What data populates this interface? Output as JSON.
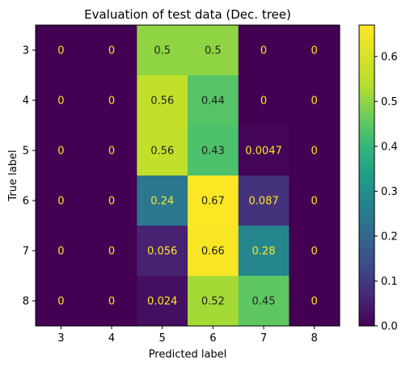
{
  "chart_data": {
    "type": "heatmap",
    "title": "Evaluation of test data (Dec. tree)",
    "xlabel": "Predicted label",
    "ylabel": "True label",
    "x_categories": [
      "3",
      "4",
      "5",
      "6",
      "7",
      "8"
    ],
    "y_categories": [
      "3",
      "4",
      "5",
      "6",
      "7",
      "8"
    ],
    "values": [
      [
        0,
        0,
        0.5,
        0.5,
        0,
        0
      ],
      [
        0,
        0,
        0.56,
        0.44,
        0,
        0
      ],
      [
        0,
        0,
        0.56,
        0.43,
        0.0047,
        0
      ],
      [
        0,
        0,
        0.24,
        0.67,
        0.087,
        0
      ],
      [
        0,
        0,
        0.056,
        0.66,
        0.28,
        0
      ],
      [
        0,
        0,
        0.024,
        0.52,
        0.45,
        0
      ]
    ],
    "cell_labels": [
      [
        "0",
        "0",
        "0.5",
        "0.5",
        "0",
        "0"
      ],
      [
        "0",
        "0",
        "0.56",
        "0.44",
        "0",
        "0"
      ],
      [
        "0",
        "0",
        "0.56",
        "0.43",
        "0.0047",
        "0"
      ],
      [
        "0",
        "0",
        "0.24",
        "0.67",
        "0.087",
        "0"
      ],
      [
        "0",
        "0",
        "0.056",
        "0.66",
        "0.28",
        "0"
      ],
      [
        "0",
        "0",
        "0.024",
        "0.52",
        "0.45",
        "0"
      ]
    ],
    "colormap": "viridis",
    "vmin": 0,
    "vmax": 0.67,
    "colorbar_ticks": [
      "0.0",
      "0.1",
      "0.2",
      "0.3",
      "0.4",
      "0.5",
      "0.6"
    ],
    "colorbar_tick_values": [
      0,
      0.1,
      0.2,
      0.3,
      0.4,
      0.5,
      0.6
    ],
    "text_color_dark_cells": "#fde725",
    "text_color_light_cells": "#222222"
  }
}
